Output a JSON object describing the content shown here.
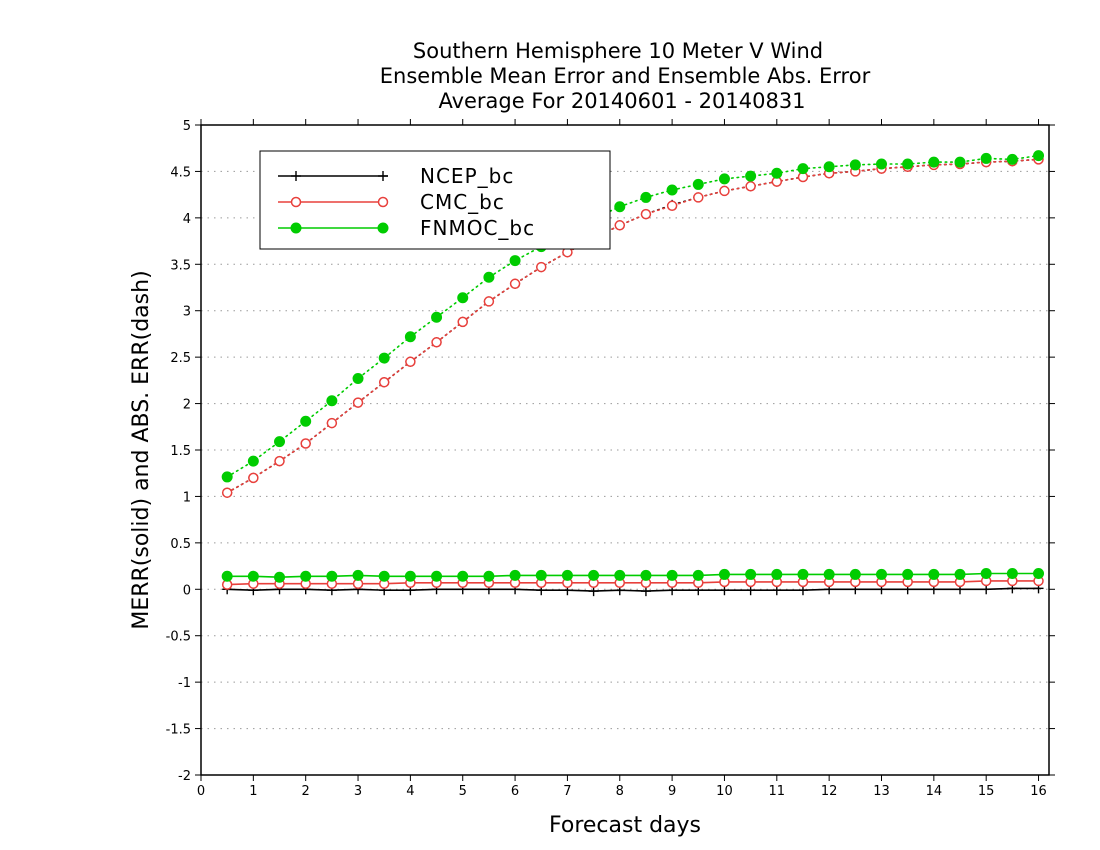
{
  "chart_data": {
    "type": "line",
    "title": [
      "Southern Hemisphere 10 Meter V Wind",
      "Ensemble Mean Error and Ensemble Abs. Error",
      "Average For 20140601 - 20140831"
    ],
    "xlabel": "Forecast days",
    "ylabel": "MERR(solid) and ABS. ERR(dash)",
    "xlim": [
      0,
      16.2
    ],
    "ylim": [
      -2,
      5
    ],
    "xticks": [
      0,
      1,
      2,
      3,
      4,
      5,
      6,
      7,
      8,
      9,
      10,
      11,
      12,
      13,
      14,
      15,
      16
    ],
    "yticks": [
      -2,
      -1.5,
      -1,
      -0.5,
      0,
      0.5,
      1,
      1.5,
      2,
      2.5,
      3,
      3.5,
      4,
      4.5,
      5
    ],
    "grid": "horizontal dotted",
    "legend_position": "top-left",
    "x": [
      0.5,
      1,
      1.5,
      2,
      2.5,
      3,
      3.5,
      4,
      4.5,
      5,
      5.5,
      6,
      6.5,
      7,
      7.5,
      8,
      8.5,
      9,
      9.5,
      10,
      10.5,
      11,
      11.5,
      12,
      12.5,
      13,
      13.5,
      14,
      14.5,
      15,
      15.5,
      16
    ],
    "series": [
      {
        "name": "NCEP_bc",
        "color": "#000000",
        "marker": "plus",
        "merr": [
          0.0,
          -0.01,
          0.0,
          0.0,
          -0.01,
          0.0,
          -0.01,
          -0.01,
          0.0,
          0.0,
          0.0,
          0.0,
          -0.01,
          -0.01,
          -0.02,
          -0.01,
          -0.02,
          -0.01,
          -0.01,
          -0.01,
          -0.01,
          -0.01,
          -0.01,
          0.0,
          0.0,
          0.0,
          0.0,
          0.0,
          0.0,
          0.0,
          0.01,
          0.01
        ],
        "abs_err": [
          1.04,
          1.2,
          1.38,
          1.57,
          1.79,
          2.01,
          2.23,
          2.45,
          2.66,
          2.88,
          3.1,
          3.29,
          3.47,
          3.63,
          3.78,
          3.92,
          4.04,
          4.14,
          4.22,
          4.29,
          4.34,
          4.39,
          4.44,
          4.48,
          4.5,
          4.53,
          4.55,
          4.57,
          4.58,
          4.6,
          4.61,
          4.63
        ]
      },
      {
        "name": "CMC_bc",
        "color": "#e8403c",
        "marker": "open-circle",
        "merr": [
          0.05,
          0.06,
          0.06,
          0.06,
          0.06,
          0.06,
          0.06,
          0.07,
          0.07,
          0.07,
          0.07,
          0.07,
          0.07,
          0.07,
          0.07,
          0.07,
          0.07,
          0.07,
          0.07,
          0.08,
          0.08,
          0.08,
          0.08,
          0.08,
          0.08,
          0.08,
          0.08,
          0.08,
          0.08,
          0.09,
          0.09,
          0.09
        ],
        "abs_err": [
          1.04,
          1.2,
          1.38,
          1.57,
          1.79,
          2.01,
          2.23,
          2.45,
          2.66,
          2.88,
          3.1,
          3.29,
          3.47,
          3.63,
          3.78,
          3.92,
          4.04,
          4.13,
          4.22,
          4.29,
          4.34,
          4.39,
          4.44,
          4.48,
          4.5,
          4.53,
          4.55,
          4.57,
          4.58,
          4.6,
          4.61,
          4.63
        ]
      },
      {
        "name": "FNMOC_bc",
        "color": "#00cc00",
        "marker": "filled-circle",
        "merr": [
          0.14,
          0.14,
          0.13,
          0.14,
          0.14,
          0.15,
          0.14,
          0.14,
          0.14,
          0.14,
          0.14,
          0.15,
          0.15,
          0.15,
          0.15,
          0.15,
          0.15,
          0.15,
          0.15,
          0.16,
          0.16,
          0.16,
          0.16,
          0.16,
          0.16,
          0.16,
          0.16,
          0.16,
          0.16,
          0.17,
          0.17,
          0.17
        ],
        "abs_err": [
          1.21,
          1.38,
          1.59,
          1.81,
          2.03,
          2.27,
          2.49,
          2.72,
          2.93,
          3.14,
          3.36,
          3.54,
          3.69,
          3.86,
          3.99,
          4.12,
          4.22,
          4.3,
          4.36,
          4.42,
          4.45,
          4.48,
          4.53,
          4.55,
          4.57,
          4.58,
          4.58,
          4.6,
          4.6,
          4.64,
          4.63,
          4.67
        ]
      }
    ]
  }
}
